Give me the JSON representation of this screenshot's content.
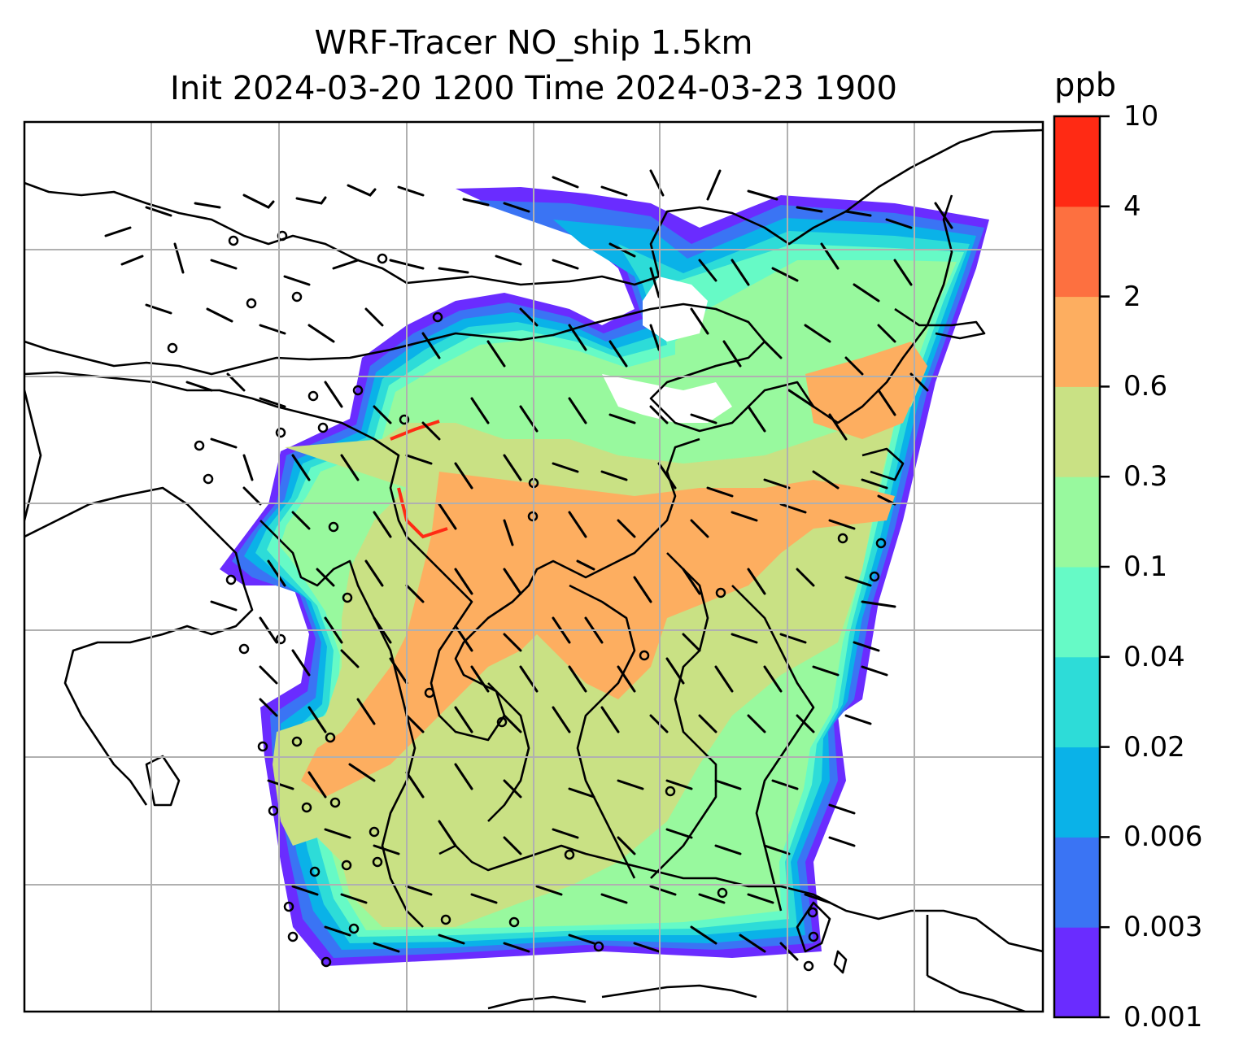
{
  "title": {
    "line1": "WRF-Tracer NO_ship 1.5km",
    "line2": "Init 2024-03-20 1200 Time 2024-03-23 1900"
  },
  "colorbar": {
    "unit": "ppb",
    "ticks": [
      "0.001",
      "0.003",
      "0.006",
      "0.02",
      "0.04",
      "0.1",
      "0.3",
      "0.6",
      "2",
      "4",
      "10"
    ],
    "colors": [
      "#6a2cff",
      "#3a74f4",
      "#0ab2e8",
      "#2ddcd8",
      "#66fac6",
      "#98f99e",
      "#c9e184",
      "#fdae60",
      "#fd7040",
      "#ff2a14"
    ]
  }
}
